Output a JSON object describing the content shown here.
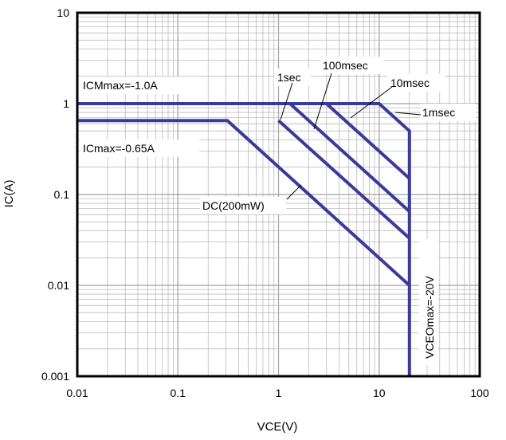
{
  "chart_data": {
    "type": "line",
    "xscale": "log",
    "yscale": "log",
    "xlim": [
      0.01,
      100
    ],
    "ylim": [
      0.001,
      10
    ],
    "xlabel": "VCE(V)",
    "ylabel": "IC(A)",
    "xticks": [
      "0.01",
      "0.1",
      "1",
      "10",
      "100"
    ],
    "yticks": [
      "0.001",
      "0.01",
      "0.1",
      "1",
      "10"
    ],
    "grid": true,
    "series_color": "#3a3a9a",
    "series": [
      {
        "name": "1msec",
        "x": [
          0.01,
          10,
          20,
          20
        ],
        "y": [
          1.0,
          1.0,
          0.5,
          0.001
        ]
      },
      {
        "name": "10msec",
        "x": [
          3,
          20
        ],
        "y": [
          1.0,
          0.15
        ]
      },
      {
        "name": "100msec",
        "x": [
          1.3,
          20
        ],
        "y": [
          1.0,
          0.065
        ]
      },
      {
        "name": "1sec",
        "x": [
          1,
          20
        ],
        "y": [
          0.65,
          0.033
        ]
      },
      {
        "name": "DC(200mW)",
        "x": [
          0.01,
          0.31,
          20
        ],
        "y": [
          0.65,
          0.65,
          0.01
        ]
      }
    ],
    "annotations": {
      "icm": "ICMmax=-1.0A",
      "ic": "ICmax=-0.65A",
      "sec1": "1sec",
      "msec100": "100msec",
      "msec10": "10msec",
      "msec1": "1msec",
      "dc": "DC(200mW)",
      "vceo": "VCEOmax=-20V"
    }
  }
}
